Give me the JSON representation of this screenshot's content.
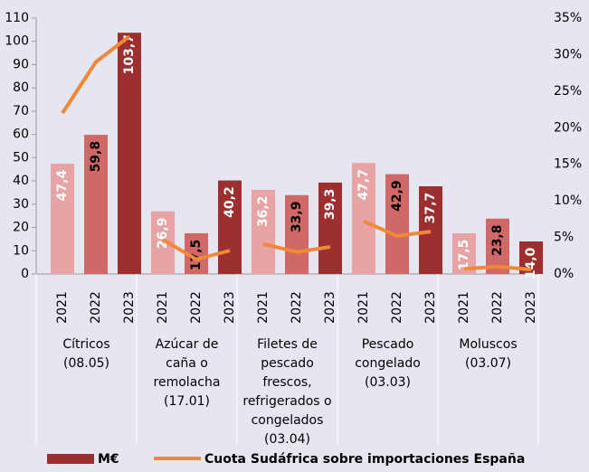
{
  "chart_data": {
    "type": "bar-line",
    "categories": [
      [
        "Cítricos",
        "(08.05)"
      ],
      [
        "Azúcar de",
        "caña o",
        "remolacha",
        "(17.01)"
      ],
      [
        "Filetes de",
        "pescado",
        "frescos,",
        "refrigerados o",
        "congelados",
        "(03.04)"
      ],
      [
        "Pescado",
        "congelado",
        "(03.03)"
      ],
      [
        "Moluscos",
        "(03.07)"
      ]
    ],
    "years": [
      "2021",
      "2022",
      "2023"
    ],
    "series": [
      {
        "name": "M€",
        "type": "bar",
        "color": "#9e2f2f",
        "year_colors": [
          "#e8a4a4",
          "#d06868",
          "#9e2f2f"
        ],
        "values": [
          [
            47.4,
            59.8,
            103.7
          ],
          [
            26.9,
            17.5,
            40.2
          ],
          [
            36.2,
            33.9,
            39.3
          ],
          [
            47.7,
            42.9,
            37.7
          ],
          [
            17.5,
            23.8,
            14.0
          ]
        ],
        "value_labels": [
          [
            "47,4",
            "59,8",
            "103,7"
          ],
          [
            "26,9",
            "17,5",
            "40,2"
          ],
          [
            "36,2",
            "33,9",
            "39,3"
          ],
          [
            "47,7",
            "42,9",
            "37,7"
          ],
          [
            "17,5",
            "23,8",
            "14,0"
          ]
        ]
      },
      {
        "name": "Cuota Sudáfrica sobre importaciones España",
        "type": "line",
        "axis": "y2",
        "color": "#f0883a",
        "values": [
          [
            22,
            29,
            32.5
          ],
          [
            4.7,
            2,
            3.2
          ],
          [
            4.1,
            3,
            3.7
          ],
          [
            7.2,
            5.2,
            5.8
          ],
          [
            0.7,
            1,
            0.6
          ]
        ]
      }
    ],
    "ylim": [
      0,
      110
    ],
    "yticks": [
      0,
      10,
      20,
      30,
      40,
      50,
      60,
      70,
      80,
      90,
      100,
      110
    ],
    "y2lim": [
      0,
      35
    ],
    "y2ticks": [
      {
        "value": 0,
        "label": "0%"
      },
      {
        "value": 5,
        "label": "5%"
      },
      {
        "value": 10,
        "label": "10%"
      },
      {
        "value": 15,
        "label": "15%"
      },
      {
        "value": 20,
        "label": "20%"
      },
      {
        "value": 25,
        "label": "25%"
      },
      {
        "value": 30,
        "label": "30%"
      },
      {
        "value": 35,
        "label": "35%"
      }
    ],
    "legend": "bottom"
  }
}
